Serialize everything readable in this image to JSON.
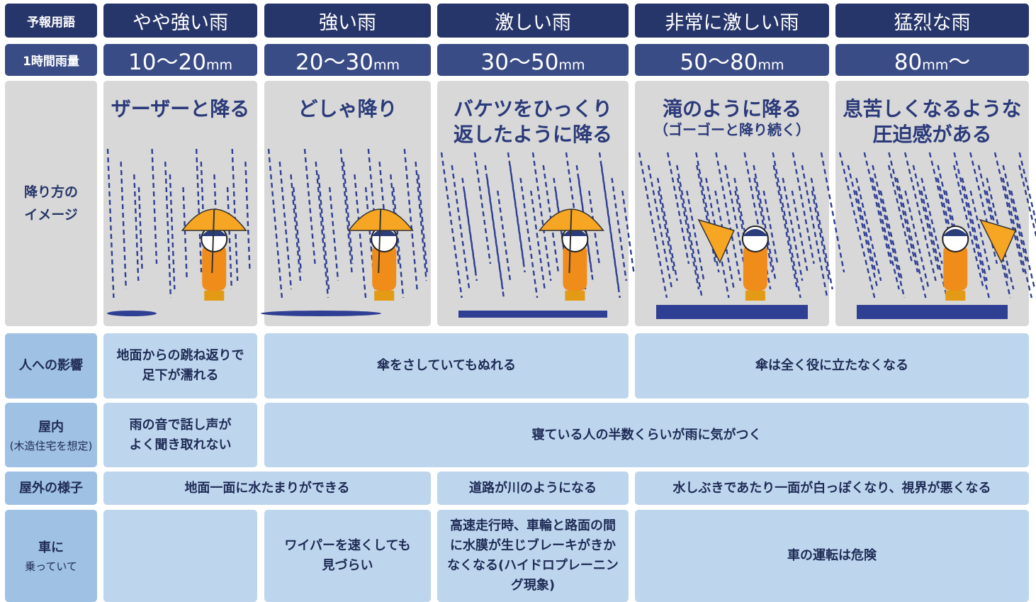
{
  "header": {
    "label": "予報用語",
    "terms": [
      "やや強い雨",
      "強い雨",
      "激しい雨",
      "非常に激しい雨",
      "猛烈な雨"
    ]
  },
  "rainfall": {
    "label": "1時間雨量",
    "ranges": [
      {
        "big": "10〜20",
        "small": "mm"
      },
      {
        "big": "20〜30",
        "small": "mm"
      },
      {
        "big": "30〜50",
        "small": "mm"
      },
      {
        "big": "50〜80",
        "small": "mm"
      },
      {
        "big": "80",
        "small": "mm",
        "tail": "〜"
      }
    ]
  },
  "image": {
    "label": [
      "降り方の",
      "イメージ"
    ],
    "captions": [
      {
        "lines": [
          "ザーザーと降る"
        ]
      },
      {
        "lines": [
          "どしゃ降り"
        ]
      },
      {
        "lines": [
          "バケツをひっくり",
          "返したように降る"
        ]
      },
      {
        "lines": [
          "滝のように降る"
        ],
        "sub": "（ゴーゴーと降り続く）"
      },
      {
        "lines": [
          "息苦しくなるような",
          "圧迫感がある"
        ]
      }
    ]
  },
  "rows": [
    {
      "label": [
        "人への影響"
      ],
      "cells": [
        [
          "地面からの跳ね返りで",
          "足下が濡れる"
        ],
        [
          "傘をさしていてもぬれる"
        ],
        [
          "傘は全く役に立たなくなる"
        ]
      ]
    },
    {
      "label": [
        "屋内",
        "(木造住宅を想定)"
      ],
      "cells": [
        [
          "雨の音で話し声が",
          "よく聞き取れない"
        ],
        [
          "寝ている人の半数くらいが雨に気がつく"
        ]
      ]
    },
    {
      "label": [
        "屋外の様子"
      ],
      "cells": [
        [
          "地面一面に水たまりができる"
        ],
        [
          "道路が川のようになる"
        ],
        [
          "水しぶきであたり一面が白っぽくなり、視界が悪くなる"
        ]
      ]
    },
    {
      "label": [
        "車に",
        "乗っていて"
      ],
      "cells": [
        [
          "ワイパーを速くしても",
          "見づらい"
        ],
        [
          "高速走行時、車輪と路面の間",
          "に水膜が生じブレーキがきか",
          "なくなる(ハイドロプレーニン",
          "グ現象)"
        ],
        [
          "車の運転は危険"
        ]
      ]
    }
  ]
}
